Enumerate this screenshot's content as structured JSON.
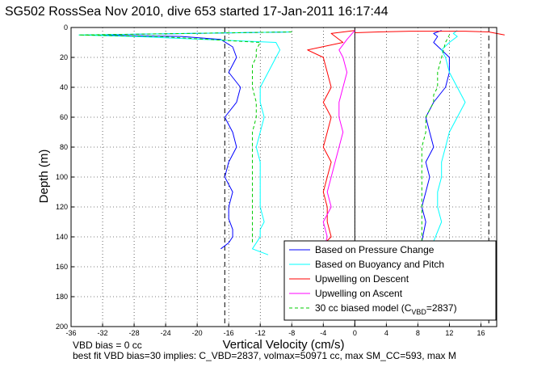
{
  "chart_data": {
    "type": "line",
    "title": "SG502 RossSea Nov 2010, dive 653 started 17-Jan-2011 16:17:44",
    "xlabel": "Vertical Velocity (cm/s)",
    "ylabel": "Depth (m)",
    "xlim": [
      -36,
      18
    ],
    "ylim": [
      200,
      0
    ],
    "y_reversed": true,
    "grid": true,
    "x_ticks": [
      "-36",
      "-32",
      "-28",
      "-24",
      "-20",
      "-16",
      "-12",
      "-8",
      "-4",
      "0",
      "4",
      "8",
      "12",
      "16"
    ],
    "y_ticks": [
      "0",
      "20",
      "40",
      "60",
      "80",
      "100",
      "120",
      "140",
      "160",
      "180",
      "200"
    ],
    "legend_position": "bottom-right",
    "vertical_reference_lines": [
      -16.5,
      17
    ],
    "series": [
      {
        "name": "Based on Pressure Change",
        "color": "#0000ff",
        "descent": {
          "x": [
            -8,
            -34,
            -22,
            -17,
            -15.5,
            -15,
            -16,
            -14.5,
            -15,
            -16.5,
            -15.5,
            -15,
            -16,
            -16.5,
            -15.5,
            -16,
            -16,
            -15.5,
            -15.5,
            -16,
            -17
          ],
          "y": [
            3,
            5,
            6,
            8,
            13,
            20,
            30,
            40,
            50,
            60,
            70,
            80,
            90,
            100,
            110,
            120,
            128,
            135,
            140,
            144,
            148
          ]
        },
        "ascent": {
          "x": [
            8.5,
            9,
            8.5,
            9,
            9.5,
            9,
            10,
            9.5,
            9,
            10,
            11.5,
            12,
            12,
            11,
            10,
            10.5,
            10,
            11
          ],
          "y": [
            143,
            130,
            120,
            110,
            100,
            90,
            80,
            70,
            60,
            50,
            40,
            30,
            20,
            15,
            10,
            6,
            4,
            2
          ]
        }
      },
      {
        "name": "Based on Buoyancy and Pitch",
        "color": "#00ffff",
        "descent": {
          "x": [
            -8,
            -35,
            -28,
            -10,
            -9.5,
            -10,
            -11,
            -12,
            -12,
            -11.5,
            -12,
            -12.5,
            -12,
            -12,
            -12,
            -12,
            -11.5,
            -12,
            -12,
            -13,
            -11
          ],
          "y": [
            3,
            5,
            6,
            10,
            15,
            20,
            30,
            40,
            50,
            60,
            70,
            80,
            90,
            100,
            110,
            120,
            130,
            135,
            140,
            148,
            152
          ]
        },
        "ascent": {
          "x": [
            10,
            11,
            10.5,
            10.5,
            11,
            11,
            11.5,
            12,
            13,
            14,
            13,
            12,
            11.5,
            11,
            12,
            13,
            12.5,
            13
          ],
          "y": [
            143,
            130,
            120,
            110,
            100,
            90,
            80,
            70,
            60,
            50,
            40,
            30,
            20,
            15,
            10,
            6,
            4,
            2
          ]
        }
      },
      {
        "name": "Upwelling on Descent",
        "color": "#ff0000",
        "x": [
          0,
          -3,
          -1.5,
          -6,
          -4,
          -3.5,
          -3,
          -4,
          -3,
          -3.5,
          -4,
          -3,
          -3.5,
          -4,
          -3.5,
          -3.5,
          -3,
          -4,
          -3.5,
          -3
        ],
        "y": [
          2,
          4,
          10,
          15,
          20,
          30,
          40,
          50,
          60,
          70,
          80,
          90,
          100,
          110,
          120,
          130,
          140,
          145,
          150,
          155
        ],
        "surface_spike": {
          "x": [
            0,
            3,
            7,
            11,
            14,
            17,
            19
          ],
          "y": [
            3.5,
            3,
            2.5,
            2.5,
            2.5,
            3,
            5
          ]
        }
      },
      {
        "name": "Upwelling on Ascent",
        "color": "#ff00ff",
        "x": [
          -4,
          -3.5,
          -4,
          -3,
          -3.5,
          -3,
          -2.5,
          -2,
          -1.5,
          -2,
          -2,
          -1.5,
          -1,
          -1.5,
          -2,
          -1,
          0
        ],
        "y": [
          150,
          140,
          130,
          120,
          110,
          100,
          90,
          80,
          70,
          60,
          50,
          40,
          30,
          20,
          15,
          8,
          2
        ]
      },
      {
        "name": "30 cc biased model (C_VBD=2837)",
        "label_main": "30 cc biased model (C",
        "label_sub": "VBD",
        "label_tail": "=2837)",
        "color": "#00cc00",
        "dashed": true,
        "descent": {
          "x": [
            -8,
            -35,
            -25,
            -12,
            -12.5,
            -12.5,
            -13,
            -13,
            -13,
            -12.5,
            -12.5,
            -13,
            -13,
            -13,
            -13,
            -13,
            -13,
            -13,
            -13,
            -13
          ],
          "y": [
            3,
            5,
            6,
            10,
            15,
            20,
            25,
            30,
            40,
            50,
            60,
            70,
            80,
            90,
            100,
            110,
            120,
            130,
            140,
            145
          ]
        },
        "ascent": {
          "x": [
            8.5,
            8.5,
            8.5,
            8.5,
            8.5,
            8.5,
            8.5,
            9,
            9,
            10,
            10,
            10.5,
            10.5,
            11,
            11.5,
            12
          ],
          "y": [
            143,
            130,
            120,
            110,
            100,
            90,
            80,
            70,
            60,
            50,
            45,
            40,
            30,
            20,
            10,
            5
          ]
        }
      }
    ]
  },
  "footer": {
    "line1": "VBD bias = 0 cc",
    "line2": "best fit VBD bias=30 implies: C_VBD=2837, volmax=50971 cc, max SM_CC=593, max M"
  }
}
